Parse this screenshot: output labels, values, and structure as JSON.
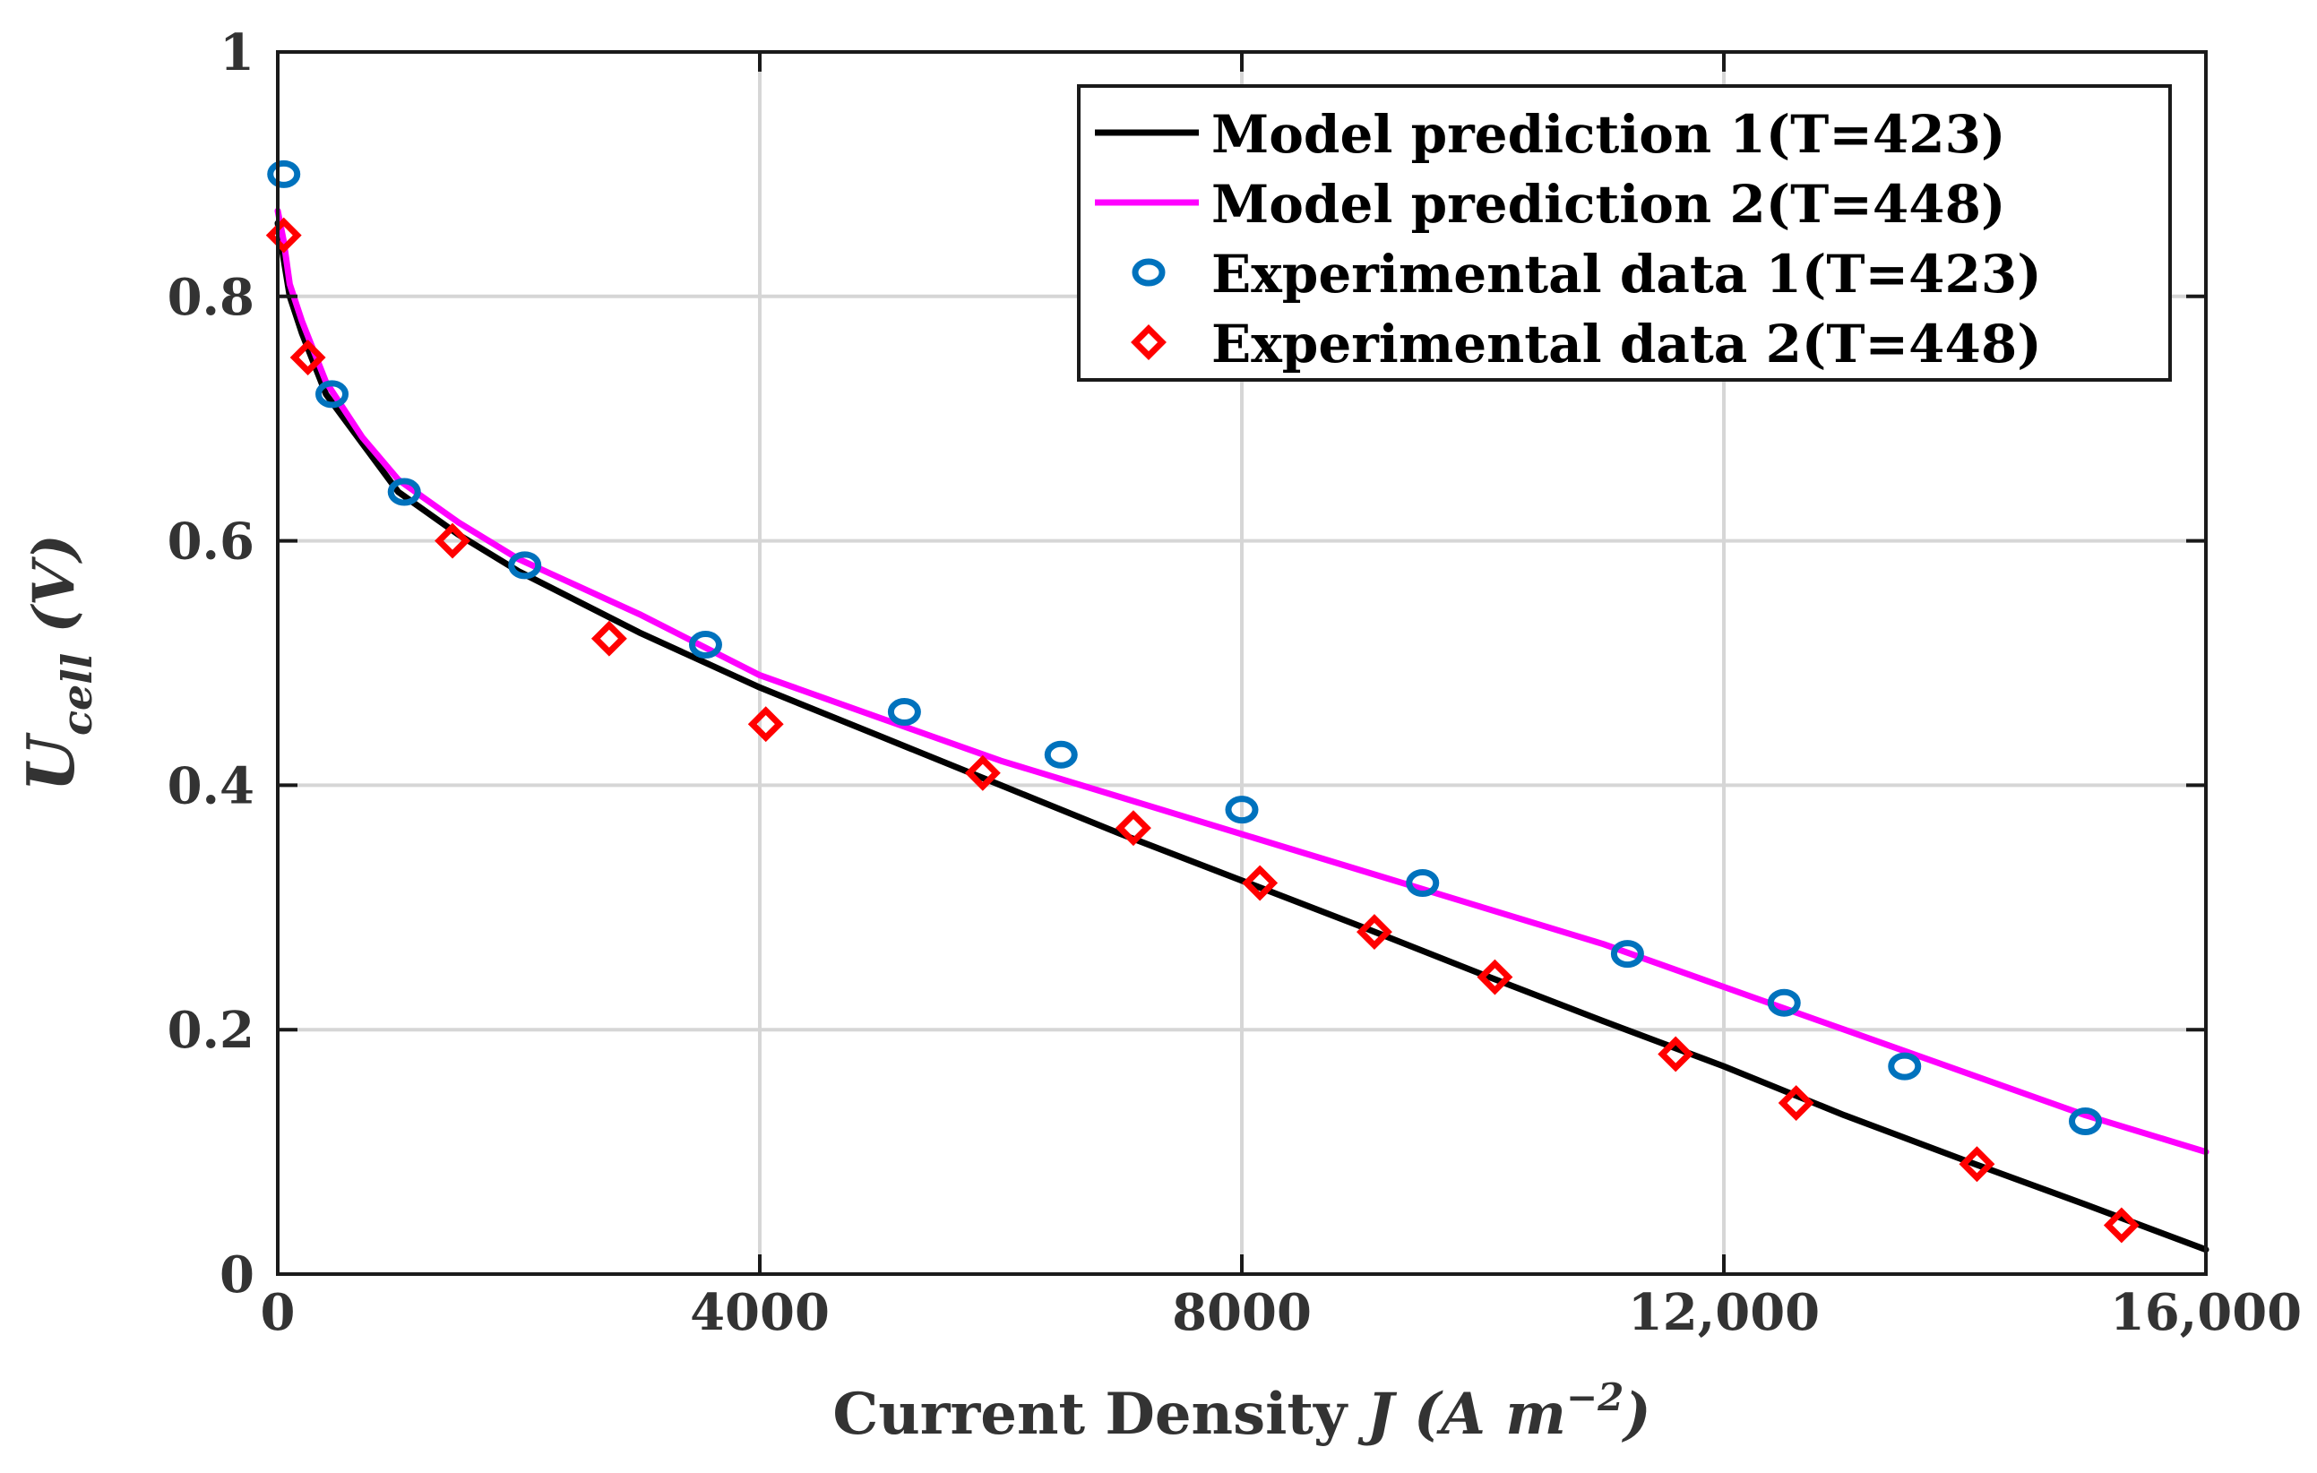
{
  "chart_data": {
    "type": "line",
    "title": "",
    "xlabel": {
      "main": "Current Density ",
      "var": "J",
      "unit_open": " (A m",
      "unit_exp": "−2",
      "unit_close": ")"
    },
    "ylabel": {
      "main": "U",
      "sub": "cell",
      "unit": " (V)"
    },
    "xlim": [
      0,
      16000
    ],
    "ylim": [
      0,
      1
    ],
    "grid": true,
    "legend_position": "top-right",
    "x_ticks": [
      {
        "value": 0,
        "label": "0"
      },
      {
        "value": 4000,
        "label": "4000"
      },
      {
        "value": 8000,
        "label": "8000"
      },
      {
        "value": 12000,
        "label": "12,000"
      },
      {
        "value": 16000,
        "label": "16,000"
      }
    ],
    "y_ticks": [
      {
        "value": 0,
        "label": "0"
      },
      {
        "value": 0.2,
        "label": "0.2"
      },
      {
        "value": 0.4,
        "label": "0.4"
      },
      {
        "value": 0.6,
        "label": "0.6"
      },
      {
        "value": 0.8,
        "label": "0.8"
      },
      {
        "value": 1,
        "label": "1"
      }
    ],
    "series": [
      {
        "name": "Model prediction 1(T=423)",
        "kind": "line",
        "color": "#000000",
        "points": [
          [
            0,
            0.86
          ],
          [
            50,
            0.83
          ],
          [
            100,
            0.8
          ],
          [
            200,
            0.77
          ],
          [
            400,
            0.72
          ],
          [
            700,
            0.68
          ],
          [
            1000,
            0.64
          ],
          [
            1500,
            0.605
          ],
          [
            2000,
            0.575
          ],
          [
            3000,
            0.525
          ],
          [
            4000,
            0.48
          ],
          [
            5000,
            0.44
          ],
          [
            6000,
            0.4
          ],
          [
            7000,
            0.36
          ],
          [
            8000,
            0.322
          ],
          [
            9000,
            0.284
          ],
          [
            10000,
            0.245
          ],
          [
            11000,
            0.207
          ],
          [
            12000,
            0.17
          ],
          [
            13000,
            0.13
          ],
          [
            14000,
            0.093
          ],
          [
            15000,
            0.057
          ],
          [
            16000,
            0.02
          ]
        ]
      },
      {
        "name": "Model prediction 2(T=448)",
        "kind": "line",
        "color": "#ff00ff",
        "points": [
          [
            0,
            0.87
          ],
          [
            50,
            0.845
          ],
          [
            100,
            0.81
          ],
          [
            200,
            0.78
          ],
          [
            400,
            0.73
          ],
          [
            700,
            0.685
          ],
          [
            1000,
            0.65
          ],
          [
            1500,
            0.615
          ],
          [
            2000,
            0.585
          ],
          [
            3000,
            0.54
          ],
          [
            4000,
            0.49
          ],
          [
            5000,
            0.455
          ],
          [
            6000,
            0.42
          ],
          [
            7000,
            0.39
          ],
          [
            8000,
            0.36
          ],
          [
            9000,
            0.33
          ],
          [
            10000,
            0.3
          ],
          [
            11000,
            0.27
          ],
          [
            12000,
            0.235
          ],
          [
            13000,
            0.2
          ],
          [
            14000,
            0.165
          ],
          [
            15000,
            0.13
          ],
          [
            16000,
            0.1
          ]
        ]
      },
      {
        "name": "Experimental data 1(T=423)",
        "kind": "scatter",
        "marker": "circle",
        "color": "#0072bd",
        "points": [
          [
            50,
            0.9
          ],
          [
            450,
            0.72
          ],
          [
            1050,
            0.64
          ],
          [
            2050,
            0.58
          ],
          [
            3550,
            0.515
          ],
          [
            5200,
            0.46
          ],
          [
            6500,
            0.425
          ],
          [
            8000,
            0.38
          ],
          [
            9500,
            0.32
          ],
          [
            11200,
            0.262
          ],
          [
            12500,
            0.222
          ],
          [
            13500,
            0.17
          ],
          [
            15000,
            0.125
          ]
        ]
      },
      {
        "name": "Experimental data  2(T=448)",
        "kind": "scatter",
        "marker": "diamond",
        "color": "#ff0000",
        "points": [
          [
            50,
            0.85
          ],
          [
            250,
            0.75
          ],
          [
            1450,
            0.6
          ],
          [
            2750,
            0.52
          ],
          [
            4050,
            0.45
          ],
          [
            5850,
            0.41
          ],
          [
            7100,
            0.365
          ],
          [
            8150,
            0.32
          ],
          [
            9100,
            0.28
          ],
          [
            10100,
            0.243
          ],
          [
            11600,
            0.18
          ],
          [
            12600,
            0.14
          ],
          [
            14100,
            0.09
          ],
          [
            15300,
            0.04
          ]
        ]
      }
    ]
  }
}
